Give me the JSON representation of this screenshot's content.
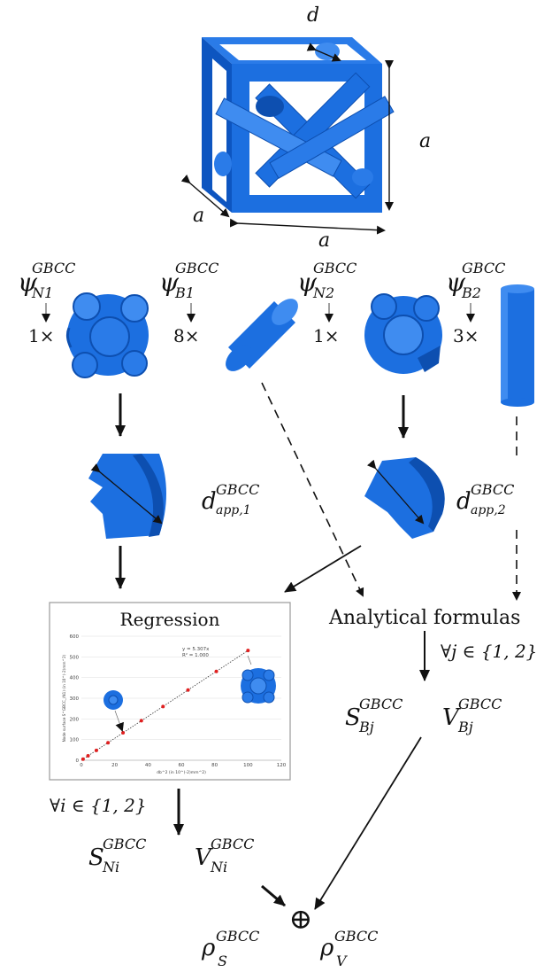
{
  "cell": {
    "label_d": "d",
    "label_a_right": "a",
    "label_a_left": "a",
    "label_a_bottom": "a"
  },
  "components": [
    {
      "psi": "ψ",
      "sup": "GBCC",
      "sub": "N1",
      "count": "1×"
    },
    {
      "psi": "ψ",
      "sup": "GBCC",
      "sub": "B1",
      "count": "8×"
    },
    {
      "psi": "ψ",
      "sup": "GBCC",
      "sub": "N2",
      "count": "1×"
    },
    {
      "psi": "ψ",
      "sup": "GBCC",
      "sub": "B2",
      "count": "3×"
    }
  ],
  "apparent": [
    {
      "base": "d",
      "sup": "GBCC",
      "sub": "app,1"
    },
    {
      "base": "d",
      "sup": "GBCC",
      "sub": "app,2"
    }
  ],
  "regression": {
    "title": "Regression",
    "equation": "y = 5.307x",
    "r2": "R² = 1.000",
    "ylabel": "Node surface S^GBCC_(N1) (in 10^(-2)mm^2)",
    "xlabel": "db^2 (in 10^(-2)mm^2)",
    "forall": "∀i ∈ {1, 2}"
  },
  "analytical": {
    "title": "Analytical formulas",
    "forall": "∀j ∈ {1, 2}"
  },
  "outputs": {
    "S_Bj": {
      "base": "S",
      "sup": "GBCC",
      "sub": "Bj"
    },
    "V_Bj": {
      "base": "V",
      "sup": "GBCC",
      "sub": "Bj"
    },
    "S_Ni": {
      "base": "S",
      "sup": "GBCC",
      "sub": "Ni"
    },
    "V_Ni": {
      "base": "V",
      "sup": "GBCC",
      "sub": "Ni"
    },
    "oplus": "⊕",
    "rho_S": {
      "base": "ρ",
      "sup": "GBCC",
      "sub": "S"
    },
    "rho_V": {
      "base": "ρ",
      "sup": "GBCC",
      "sub": "V"
    }
  },
  "colors": {
    "blue": "#1c6fe0",
    "red_points": "#e02020"
  },
  "chart_data": {
    "type": "scatter",
    "title": "",
    "xlabel": "db^2 (in 10^(-2)mm^2)",
    "ylabel": "Node surface S^GBCC_(N1) (in 10^(-2)mm^2)",
    "xlim": [
      0,
      120
    ],
    "ylim": [
      0,
      600
    ],
    "xticks": [
      0,
      20,
      40,
      60,
      80,
      100,
      120
    ],
    "yticks": [
      0,
      100,
      200,
      300,
      400,
      500,
      600
    ],
    "grid": true,
    "series": [
      {
        "values_x": [
          1,
          4,
          9,
          16,
          25,
          36,
          49,
          64,
          81,
          100
        ],
        "values_y": [
          5.3,
          21.2,
          47.8,
          84.9,
          132.7,
          191.1,
          260.0,
          339.6,
          429.9,
          530.7
        ]
      }
    ],
    "trendline": {
      "slope": 5.307
    }
  }
}
